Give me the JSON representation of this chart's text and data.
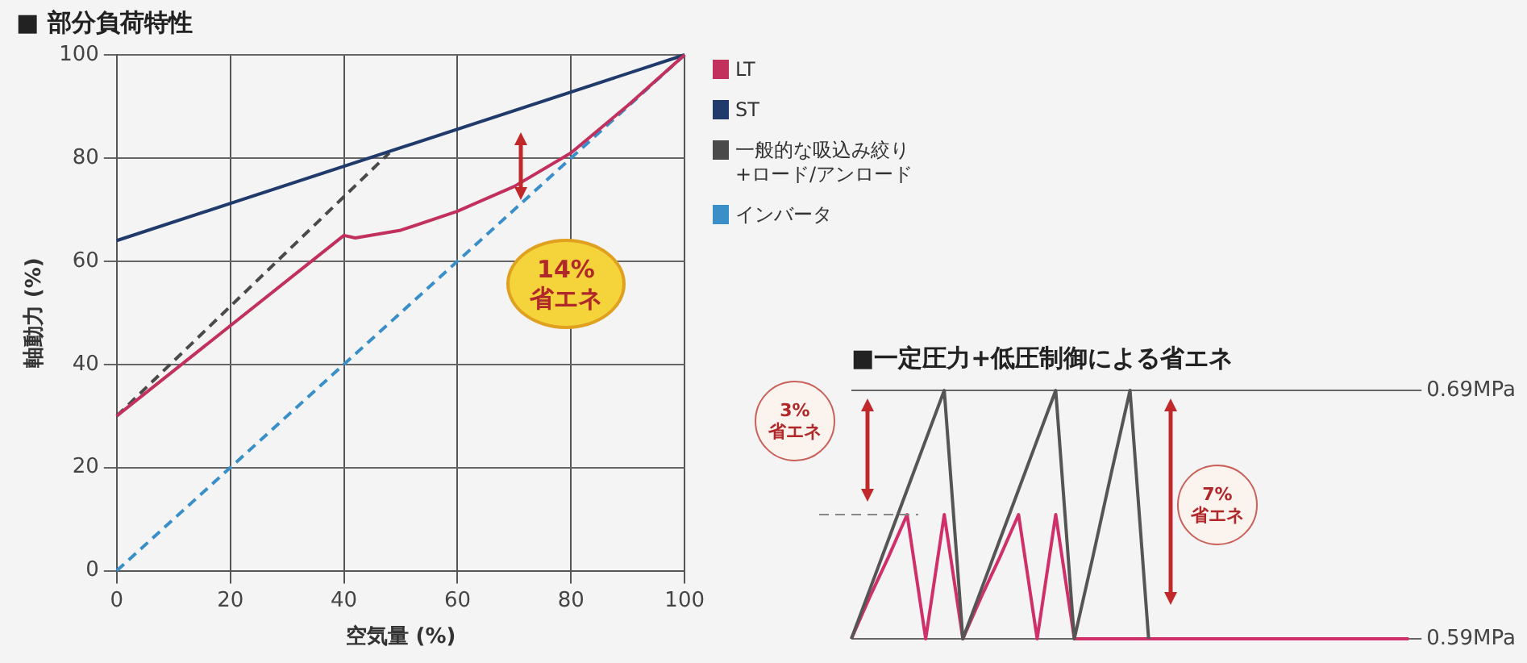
{
  "chart_data": [
    {
      "type": "line",
      "title": "■ 部分負荷特性",
      "xlabel": "空気量 (%)",
      "ylabel": "軸動力 (%)",
      "xlim": [
        0,
        100
      ],
      "ylim": [
        0,
        100
      ],
      "xticks": [
        0,
        20,
        40,
        60,
        80,
        100
      ],
      "yticks": [
        0,
        20,
        40,
        60,
        80,
        100
      ],
      "grid": true,
      "legend": "right",
      "marker": "none",
      "annotations": [
        "14%\n省エネ"
      ],
      "series": [
        {
          "name": "LT",
          "color": "#c2305e",
          "x": [
            0,
            40,
            42,
            50,
            60,
            70,
            80,
            90,
            100
          ],
          "values": [
            30,
            65,
            64.5,
            66,
            69.7,
            74.5,
            81,
            90.2,
            100
          ]
        },
        {
          "name": "ST",
          "color": "#1f3a6b",
          "x": [
            0,
            100
          ],
          "values": [
            64,
            100
          ]
        },
        {
          "name": "一般的な吸込み絞り+ロード/アンロード",
          "color": "#4a4a4a",
          "line_style": "dashed",
          "x": [
            0,
            48
          ],
          "values": [
            30,
            81
          ]
        },
        {
          "name": "インバータ",
          "color": "#3a8fc8",
          "line_style": "dashed",
          "x": [
            0,
            100
          ],
          "values": [
            0,
            100
          ]
        }
      ]
    },
    {
      "type": "line",
      "title": "■一定圧力+低圧制御による省エネ",
      "categories": [
        null,
        null,
        null,
        null,
        null,
        null,
        null,
        null,
        null,
        null,
        null,
        null,
        null,
        null,
        null,
        null,
        null,
        null,
        null,
        null,
        null,
        null,
        null,
        null,
        null,
        null,
        null,
        null,
        null,
        null,
        null
      ],
      "ylim": [
        0.59,
        0.69
      ],
      "yticks": [
        {
          "value": 0.59,
          "label": "0.59MPa"
        },
        {
          "value": 0.69,
          "label": "0.69MPa"
        }
      ],
      "tick_labels": "y",
      "grid": "y",
      "marker": "none",
      "annotations": [
        "3%\n省エネ",
        "7%\n省エネ"
      ],
      "ref_lines": [
        {
          "axis": "y",
          "value": 0.64,
          "color": "#888888",
          "line_style": "dashed"
        }
      ],
      "series": [
        {
          "color": "#555555",
          "values": [
            0.59,
            0.61,
            0.63,
            0.65,
            0.67,
            0.69,
            0.59,
            0.61,
            0.63,
            0.65,
            0.67,
            0.69,
            0.59,
            0.623,
            0.657,
            0.69,
            0.59,
            null,
            null,
            null,
            null,
            null,
            null,
            null,
            null,
            null,
            null,
            null,
            null,
            null,
            null
          ]
        },
        {
          "color": "#d0306a",
          "values": [
            0.59,
            0.607,
            0.623,
            0.64,
            0.59,
            0.64,
            0.59,
            0.607,
            0.623,
            0.64,
            0.59,
            0.64,
            0.59,
            0.59,
            0.59,
            0.59,
            0.59,
            0.59,
            0.59,
            0.59,
            0.59,
            0.59,
            0.59,
            0.59,
            0.59,
            0.59,
            0.59,
            0.59,
            0.59,
            0.59,
            0.59
          ]
        }
      ]
    }
  ]
}
